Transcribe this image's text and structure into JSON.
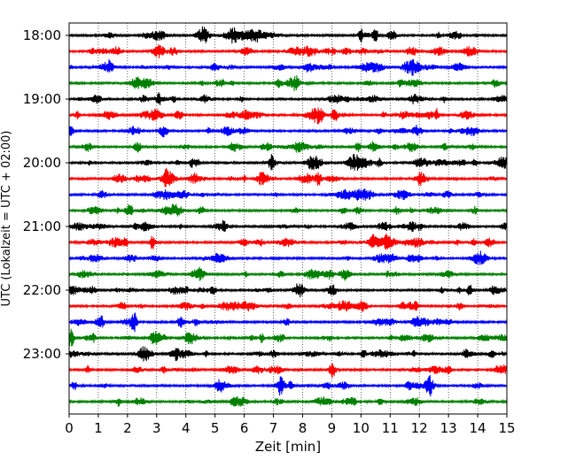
{
  "chart_data": {
    "type": "line",
    "title": "",
    "xlabel": "Zeit  [min]",
    "ylabel": "UTC (Lokalzeit = UTC + 02:00)",
    "xlim": [
      0,
      15
    ],
    "x_ticks": [
      "0",
      "1",
      "2",
      "3",
      "4",
      "5",
      "6",
      "7",
      "8",
      "9",
      "10",
      "11",
      "12",
      "13",
      "14",
      "15"
    ],
    "y_ticks": [
      "18:00",
      "19:00",
      "20:00",
      "21:00",
      "22:00",
      "23:00"
    ],
    "y_tick_rows": [
      0,
      4,
      8,
      12,
      16,
      20
    ],
    "row_interval_minutes": 15,
    "grid": "vertical dotted every 1 min",
    "trace_colors": [
      "#000000",
      "#ff0000",
      "#0000ff",
      "#008000"
    ],
    "traces": [
      {
        "start": "18:00",
        "color": "#000000"
      },
      {
        "start": "18:15",
        "color": "#ff0000"
      },
      {
        "start": "18:30",
        "color": "#0000ff"
      },
      {
        "start": "18:45",
        "color": "#008000"
      },
      {
        "start": "19:00",
        "color": "#000000"
      },
      {
        "start": "19:15",
        "color": "#ff0000"
      },
      {
        "start": "19:30",
        "color": "#0000ff"
      },
      {
        "start": "19:45",
        "color": "#008000"
      },
      {
        "start": "20:00",
        "color": "#000000"
      },
      {
        "start": "20:15",
        "color": "#ff0000"
      },
      {
        "start": "20:30",
        "color": "#0000ff"
      },
      {
        "start": "20:45",
        "color": "#008000"
      },
      {
        "start": "21:00",
        "color": "#000000"
      },
      {
        "start": "21:15",
        "color": "#ff0000"
      },
      {
        "start": "21:30",
        "color": "#0000ff"
      },
      {
        "start": "21:45",
        "color": "#008000"
      },
      {
        "start": "22:00",
        "color": "#000000"
      },
      {
        "start": "22:15",
        "color": "#ff0000"
      },
      {
        "start": "22:30",
        "color": "#0000ff"
      },
      {
        "start": "22:45",
        "color": "#008000"
      },
      {
        "start": "23:00",
        "color": "#000000"
      },
      {
        "start": "23:15",
        "color": "#ff0000"
      },
      {
        "start": "23:30",
        "color": "#0000ff"
      },
      {
        "start": "23:45",
        "color": "#008000"
      }
    ]
  }
}
